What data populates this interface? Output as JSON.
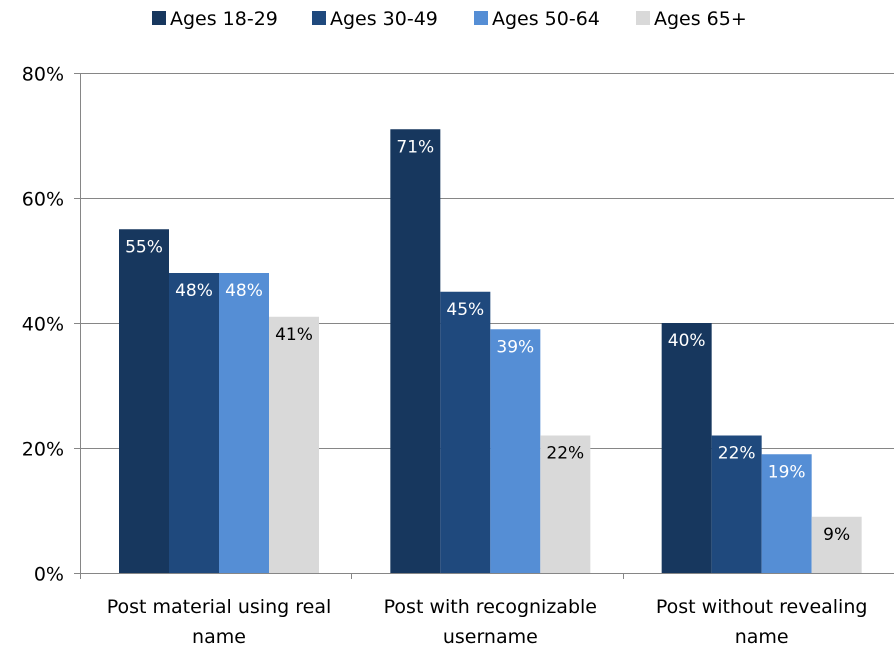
{
  "chart_data": {
    "type": "bar",
    "categories": [
      [
        "Post material using real",
        "name"
      ],
      [
        "Post with recognizable",
        "username"
      ],
      [
        "Post without revealing",
        "name"
      ]
    ],
    "series": [
      {
        "name": "Ages 18-29",
        "values": [
          55,
          71,
          40
        ],
        "labels": [
          "55%",
          "71%",
          "40%"
        ],
        "color": "#17375e",
        "label_color": "#ffffff"
      },
      {
        "name": "Ages 30-49",
        "values": [
          48,
          45,
          22
        ],
        "labels": [
          "48%",
          "45%",
          "22%"
        ],
        "color": "#1f497d",
        "label_color": "#ffffff"
      },
      {
        "name": "Ages 50-64",
        "values": [
          48,
          39,
          19
        ],
        "labels": [
          "48%",
          "39%",
          "19%"
        ],
        "color": "#558ed5",
        "label_color": "#ffffff"
      },
      {
        "name": "Ages 65+",
        "values": [
          41,
          22,
          9
        ],
        "labels": [
          "41%",
          "22%",
          "9%"
        ],
        "color": "#d9d9d9",
        "label_color": "#000000"
      }
    ],
    "ylim": [
      0,
      80
    ],
    "yticks": [
      0,
      20,
      40,
      60,
      80
    ],
    "ytick_labels": [
      "0%",
      "20%",
      "40%",
      "60%",
      "80%"
    ],
    "grid": true,
    "legend_position": "top-center",
    "gridline_color": "#868686"
  }
}
